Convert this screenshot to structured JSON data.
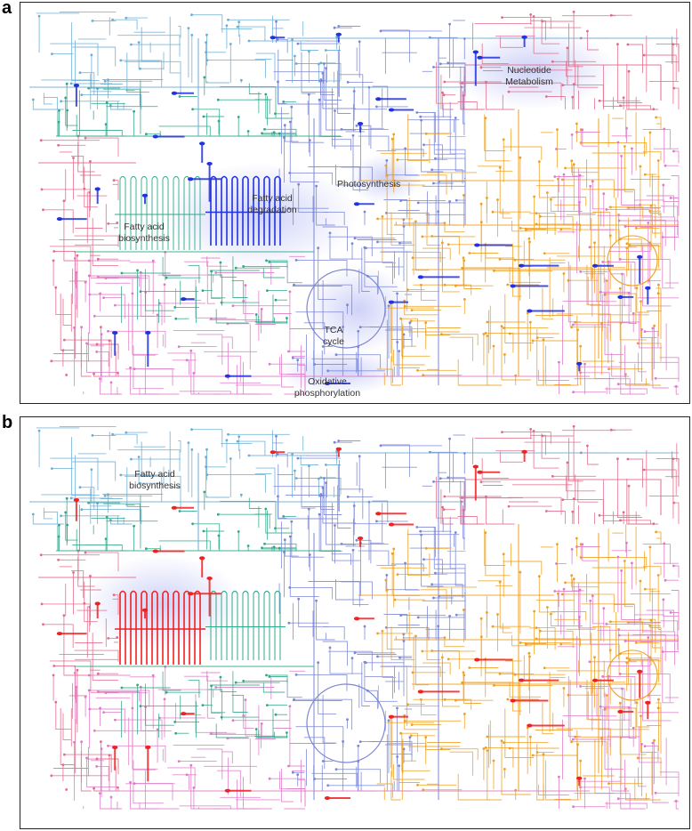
{
  "panels": [
    {
      "letter": "a",
      "highlight_color": "#2233dd",
      "labels": {
        "nucleotide": "Nucleotide Metabolism",
        "photosynthesis": "Photosynthesis",
        "fatty_deg": "Fatty acid degradation",
        "fatty_bio": "Fatty acid biosynthesis",
        "tca": "TCA cycle",
        "oxphos": "Oxidative phosphorylation"
      }
    },
    {
      "letter": "b",
      "highlight_color": "#ee2222",
      "labels": {
        "fatty_bio": "Fatty acid biosynthesis"
      }
    }
  ],
  "pathway_colors": {
    "carbohydrate": "#7b86d6",
    "lipid": "#2fa88a",
    "amino_acid": "#f0a020",
    "nucleotide": "#e36b8b",
    "cofactor": "#de7ac9",
    "other": "#6aaed6"
  }
}
